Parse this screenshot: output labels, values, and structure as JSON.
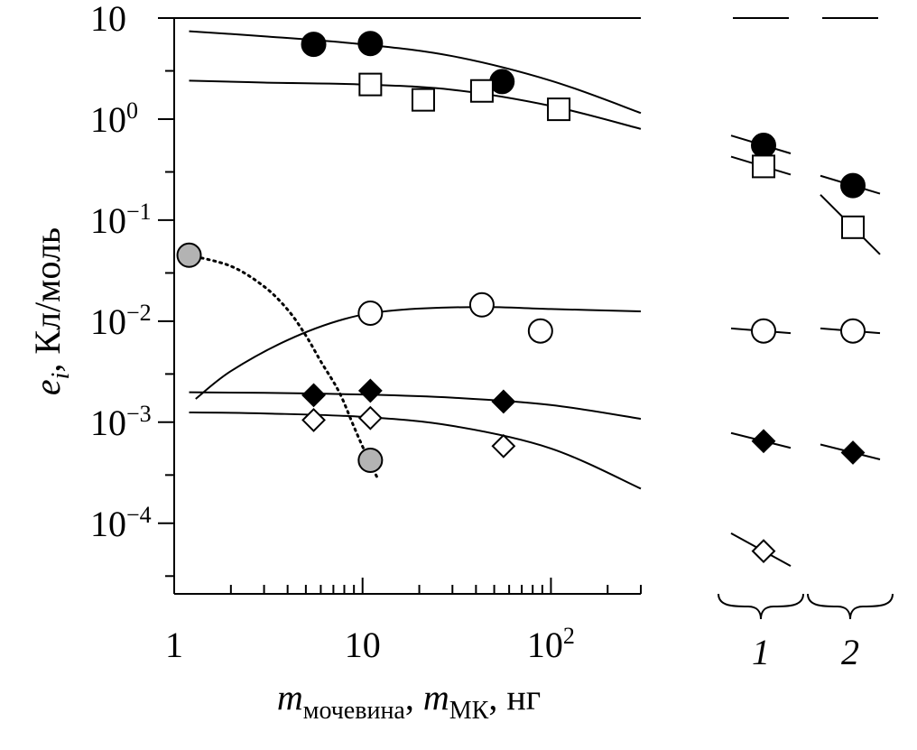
{
  "chart_data": {
    "type": "scatter",
    "title": "",
    "x_scale": "log",
    "y_scale": "log",
    "xlim": [
      1,
      300
    ],
    "ylim": [
      2e-05,
      10
    ],
    "grid": false,
    "x_axis_label": {
      "m1": "m",
      "sub1": "мочевина",
      "sep": ", ",
      "m2": "m",
      "sub2": "МК",
      "unit": ", нг"
    },
    "y_axis_label": {
      "e": "e",
      "sub": "i",
      "rest": ", Кл/моль"
    },
    "x_ticks": [
      {
        "value": 1,
        "base": "1",
        "exp": ""
      },
      {
        "value": 10,
        "base": "10",
        "exp": ""
      },
      {
        "value": 100,
        "base": "10",
        "exp": "2"
      }
    ],
    "y_ticks": [
      {
        "value": 10,
        "base": "10",
        "exp": ""
      },
      {
        "value": 1,
        "base": "10",
        "exp": "0"
      },
      {
        "value": 0.1,
        "base": "10",
        "exp": "−1"
      },
      {
        "value": 0.01,
        "base": "10",
        "exp": "−2"
      },
      {
        "value": 0.001,
        "base": "10",
        "exp": "−3"
      },
      {
        "value": 0.0001,
        "base": "10",
        "exp": "−4"
      }
    ],
    "series": [
      {
        "marker": "circle",
        "fill": "#000000",
        "points": [
          [
            5.5,
            5.5
          ],
          [
            11,
            5.6
          ],
          [
            55,
            2.35
          ]
        ],
        "curve": [
          [
            1.2,
            7.4
          ],
          [
            3,
            6.6
          ],
          [
            10,
            5.5
          ],
          [
            30,
            4.2
          ],
          [
            100,
            2.4
          ],
          [
            300,
            1.15
          ]
        ],
        "panel_1": 0.55,
        "panel_2": 0.22
      },
      {
        "marker": "square",
        "fill": "#ffffff",
        "points": [
          [
            11,
            2.2
          ],
          [
            21,
            1.55
          ],
          [
            43,
            1.9
          ],
          [
            110,
            1.25
          ]
        ],
        "curve": [
          [
            1.2,
            2.4
          ],
          [
            3,
            2.3
          ],
          [
            10,
            2.2
          ],
          [
            30,
            1.95
          ],
          [
            100,
            1.35
          ],
          [
            300,
            0.8
          ]
        ],
        "panel_1": 0.34,
        "panel_2": 0.085
      },
      {
        "marker": "circle",
        "fill": "#ffffff",
        "points": [
          [
            11,
            0.012
          ],
          [
            43,
            0.0145
          ],
          [
            88,
            0.008
          ]
        ],
        "curve": [
          [
            1.3,
            0.0017
          ],
          [
            2,
            0.0032
          ],
          [
            4,
            0.0065
          ],
          [
            8,
            0.0105
          ],
          [
            15,
            0.0128
          ],
          [
            40,
            0.0138
          ],
          [
            100,
            0.0132
          ],
          [
            300,
            0.0125
          ]
        ],
        "panel_1": 0.008,
        "panel_2": 0.008
      },
      {
        "marker": "diamond",
        "fill": "#000000",
        "points": [
          [
            5.5,
            0.00185
          ],
          [
            11,
            0.00205
          ],
          [
            56,
            0.0016
          ]
        ],
        "curve": [
          [
            1.2,
            0.00198
          ],
          [
            3,
            0.00195
          ],
          [
            10,
            0.00188
          ],
          [
            30,
            0.00175
          ],
          [
            100,
            0.00148
          ],
          [
            300,
            0.00108
          ]
        ],
        "panel_1": 0.00065,
        "panel_2": 0.0005
      },
      {
        "marker": "diamond",
        "fill": "#ffffff",
        "points": [
          [
            5.5,
            0.00105
          ],
          [
            11,
            0.0011
          ],
          [
            56,
            0.00058
          ]
        ],
        "curve": [
          [
            1.2,
            0.00125
          ],
          [
            3,
            0.00122
          ],
          [
            10,
            0.00113
          ],
          [
            30,
            0.00092
          ],
          [
            100,
            0.00055
          ],
          [
            300,
            0.00022
          ]
        ],
        "panel_1": 5.3e-05,
        "panel_2": null
      },
      {
        "marker": "circle",
        "fill": "#b3b3b3",
        "points": [
          [
            1.2,
            0.045
          ],
          [
            11,
            0.00042
          ]
        ],
        "curve": [
          [
            1.2,
            0.045
          ],
          [
            2,
            0.035
          ],
          [
            3,
            0.022
          ],
          [
            4,
            0.013
          ],
          [
            5,
            0.0072
          ],
          [
            6,
            0.004
          ],
          [
            7.5,
            0.002
          ],
          [
            9,
            0.0009
          ],
          [
            10.5,
            0.00047
          ],
          [
            12,
            0.00028
          ]
        ],
        "curve_style": "dotted",
        "panel_1": null,
        "panel_2": null
      }
    ],
    "panels": [
      {
        "label": "1"
      },
      {
        "label": "2"
      }
    ]
  }
}
